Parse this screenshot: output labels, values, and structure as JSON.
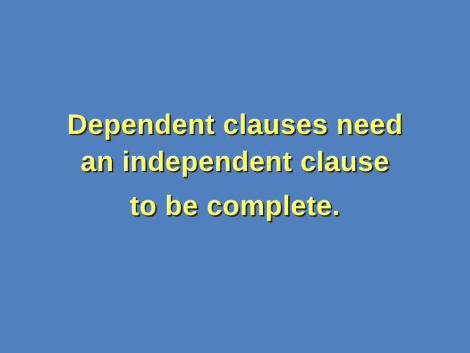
{
  "slide": {
    "background_color": "#5080bd",
    "text_color": "#ffff66",
    "lines": [
      "Dependent clauses need",
      "an independent clause",
      "to be complete."
    ]
  }
}
